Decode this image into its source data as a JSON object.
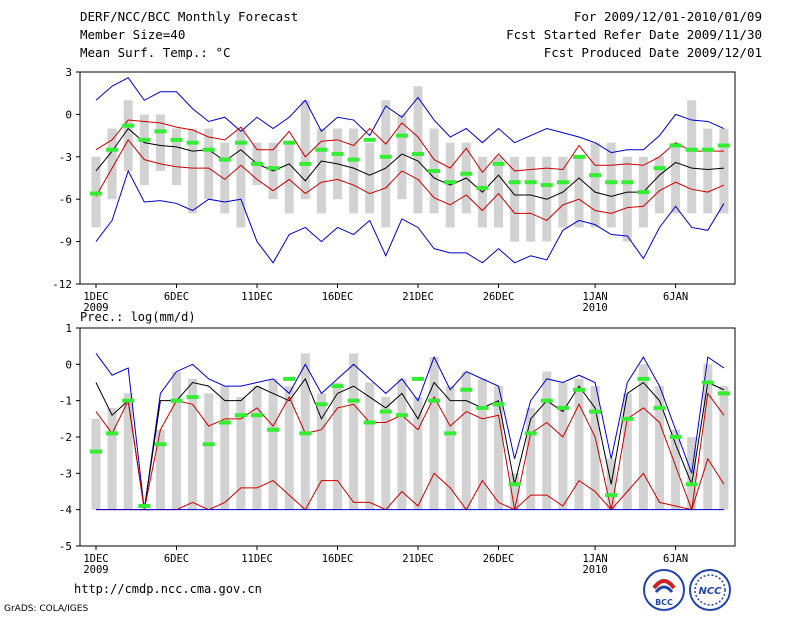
{
  "header": {
    "title": "DERF/NCC/BCC Monthly Forecast",
    "member_size": "Member Size=40",
    "variable": "Mean Surf. Temp.: °C",
    "period": "For 2009/12/01-2010/01/09",
    "start_date": "Fcst Started Refer Date 2009/11/30",
    "produced_date": "Fcst Produced Date 2009/12/01"
  },
  "footer": {
    "url": "http://cmdp.ncc.cma.gov.cn",
    "credit": "GrADS: COLA/IGES",
    "logo_bcc": "BCC",
    "logo_ncc": "NCC"
  },
  "colors": {
    "bar": "#d2d2d2",
    "median": "#33ee33",
    "envelope": "#0000cc",
    "inner": "#cc0000",
    "mean": "#000000"
  },
  "chart_data": [
    {
      "type": "box-series",
      "title": "Mean Surf. Temp.: °C",
      "ylim": [
        -12,
        3
      ],
      "yticks": [
        3,
        0,
        -3,
        -6,
        -9,
        -12
      ],
      "x_ticks": [
        "1DEC",
        "6DEC",
        "11DEC",
        "16DEC",
        "21DEC",
        "26DEC",
        "1JAN",
        "6JAN"
      ],
      "x_tick_days": [
        1,
        6,
        11,
        16,
        21,
        26,
        32,
        37
      ],
      "year_labels": [
        {
          "day": 1,
          "text": "2009"
        },
        {
          "day": 32,
          "text": "2010"
        }
      ],
      "days": 40,
      "bar_low": [
        -8,
        -6,
        -4,
        -5,
        -4,
        -5,
        -7,
        -6,
        -7,
        -8,
        -5,
        -6,
        -7,
        -6,
        -7,
        -6,
        -7,
        -7,
        -8,
        -6,
        -7,
        -7,
        -8,
        -7,
        -8,
        -8,
        -9,
        -9,
        -9,
        -8,
        -8,
        -8,
        -8,
        -9,
        -8,
        -7,
        -7,
        -7,
        -7,
        -7
      ],
      "bar_high": [
        -3,
        -1,
        1,
        0,
        0,
        -1,
        -1,
        -1,
        -2,
        -1,
        -2,
        -2,
        -2,
        1,
        -1,
        -1,
        -1,
        -2,
        1,
        0,
        2,
        -1,
        -2,
        -2,
        -3,
        -3,
        -3,
        -3,
        -3,
        -3,
        -3,
        -2,
        -2,
        -3,
        -3,
        -3,
        -2,
        1,
        -1,
        -1
      ],
      "medians": [
        -5.6,
        -2.5,
        -0.8,
        -1.8,
        -1.2,
        -1.8,
        -2.0,
        -2.5,
        -3.2,
        -2.0,
        -3.5,
        -3.8,
        -2.0,
        -3.5,
        -2.5,
        -2.8,
        -3.2,
        -1.8,
        -3.0,
        -1.5,
        -2.8,
        -4.0,
        -4.8,
        -4.2,
        -5.2,
        -3.5,
        -4.8,
        -4.8,
        -5.0,
        -4.8,
        -3.0,
        -4.3,
        -4.8,
        -4.8,
        -5.5,
        -3.8,
        -2.2,
        -2.5,
        -2.5,
        -2.2
      ],
      "series": [
        {
          "name": "max",
          "color": "#0000cc",
          "values": [
            1.0,
            2.0,
            2.6,
            1.0,
            1.6,
            1.6,
            0.4,
            -0.5,
            -0.2,
            -1.2,
            -0.2,
            -1.0,
            -0.2,
            1.0,
            -1.2,
            -0.2,
            -0.4,
            -1.5,
            0.6,
            -0.2,
            1.2,
            -0.4,
            -1.6,
            -1.0,
            -2.0,
            -1.0,
            -2.0,
            -1.5,
            -1.0,
            -1.3,
            -1.6,
            -2.0,
            -2.7,
            -2.5,
            -2.5,
            -1.5,
            0.0,
            -0.4,
            -0.5,
            -1.0
          ]
        },
        {
          "name": "upper",
          "color": "#cc0000",
          "values": [
            -2.5,
            -1.8,
            -0.4,
            -0.5,
            -0.6,
            -0.9,
            -1.1,
            -1.6,
            -1.8,
            -0.9,
            -2.5,
            -2.5,
            -1.2,
            -3.0,
            -1.9,
            -1.8,
            -2.2,
            -1.0,
            -2.1,
            -0.6,
            -1.6,
            -3.2,
            -3.8,
            -2.4,
            -4.1,
            -2.8,
            -4.0,
            -3.9,
            -3.8,
            -3.9,
            -2.2,
            -3.6,
            -3.6,
            -3.5,
            -3.6,
            -3.0,
            -2.0,
            -2.6,
            -2.6,
            -2.6
          ]
        },
        {
          "name": "mean",
          "color": "#000000",
          "values": [
            -4.0,
            -2.6,
            -1.0,
            -2.0,
            -2.2,
            -2.3,
            -2.6,
            -2.5,
            -3.3,
            -2.5,
            -3.5,
            -4.0,
            -3.5,
            -4.7,
            -3.3,
            -3.5,
            -3.8,
            -4.3,
            -3.8,
            -2.8,
            -3.3,
            -4.5,
            -5.0,
            -4.5,
            -5.5,
            -4.3,
            -5.7,
            -5.7,
            -6.0,
            -5.5,
            -4.5,
            -5.5,
            -5.8,
            -5.5,
            -5.5,
            -4.3,
            -3.4,
            -3.8,
            -3.9,
            -3.8
          ]
        },
        {
          "name": "lower",
          "color": "#cc0000",
          "values": [
            -5.8,
            -3.8,
            -1.8,
            -3.2,
            -3.5,
            -3.7,
            -3.8,
            -3.8,
            -4.6,
            -3.6,
            -4.6,
            -5.4,
            -4.6,
            -5.6,
            -4.8,
            -4.6,
            -5.0,
            -5.6,
            -5.2,
            -4.0,
            -4.6,
            -5.9,
            -6.4,
            -5.7,
            -6.8,
            -5.6,
            -7.0,
            -7.0,
            -7.5,
            -6.4,
            -6.0,
            -6.8,
            -7.0,
            -6.6,
            -6.5,
            -5.4,
            -4.8,
            -5.3,
            -5.5,
            -5.0
          ]
        },
        {
          "name": "min",
          "color": "#0000cc",
          "values": [
            -9.0,
            -7.5,
            -4.0,
            -6.2,
            -6.1,
            -6.3,
            -6.8,
            -6.0,
            -6.2,
            -6.0,
            -9.0,
            -10.5,
            -8.5,
            -8.0,
            -9.0,
            -8.0,
            -8.5,
            -7.5,
            -10.0,
            -7.4,
            -8.0,
            -9.5,
            -9.8,
            -9.8,
            -10.5,
            -9.5,
            -10.5,
            -10.0,
            -10.3,
            -8.2,
            -7.5,
            -7.8,
            -8.5,
            -8.6,
            -10.2,
            -8.0,
            -6.5,
            -8.0,
            -8.2,
            -6.3
          ]
        }
      ]
    },
    {
      "type": "box-series",
      "title": "Prec.: log(mm/d)",
      "ylim": [
        -5,
        1
      ],
      "yticks": [
        1,
        0,
        -1,
        -2,
        -3,
        -4,
        -5
      ],
      "x_ticks": [
        "1DEC",
        "6DEC",
        "11DEC",
        "16DEC",
        "21DEC",
        "26DEC",
        "1JAN",
        "6JAN"
      ],
      "x_tick_days": [
        1,
        6,
        11,
        16,
        21,
        26,
        32,
        37
      ],
      "year_labels": [
        {
          "day": 1,
          "text": "2009"
        },
        {
          "day": 32,
          "text": "2010"
        }
      ],
      "days": 40,
      "bar_low": [
        -4,
        -4,
        -4,
        -4,
        -4,
        -4,
        -4,
        -4,
        -4,
        -4,
        -4,
        -4,
        -4,
        -4,
        -4,
        -4,
        -4,
        -4,
        -4,
        -4,
        -4,
        -4,
        -4,
        -4,
        -4,
        -4,
        -4,
        -4,
        -4,
        -4,
        -4,
        -4,
        -4,
        -4,
        -4,
        -4,
        -4,
        -4,
        -4,
        -4
      ],
      "bar_high": [
        -1.5,
        -1.2,
        -0.8,
        -4.0,
        -1.8,
        -0.2,
        -0.4,
        -0.8,
        -0.6,
        -0.9,
        -0.6,
        -0.4,
        -0.6,
        0.3,
        -0.8,
        -0.5,
        0.3,
        -0.5,
        -0.9,
        -0.4,
        -0.9,
        0.2,
        -0.6,
        -0.2,
        -0.4,
        -0.6,
        -3.0,
        -1.2,
        -0.2,
        -0.5,
        -0.4,
        -0.6,
        -2.6,
        -0.8,
        0.0,
        -0.6,
        -1.8,
        -2.0,
        0.0,
        -0.6
      ],
      "medians": [
        -2.4,
        -1.9,
        -1.0,
        -3.9,
        -2.2,
        -1.0,
        -0.9,
        -2.2,
        -1.6,
        -1.4,
        -1.4,
        -1.8,
        -0.4,
        -1.9,
        -1.1,
        -0.6,
        -1.0,
        -1.6,
        -1.3,
        -1.4,
        -0.4,
        -1.0,
        -1.9,
        -0.7,
        -1.2,
        -1.1,
        -3.3,
        -1.9,
        -1.0,
        -1.2,
        -0.7,
        -1.3,
        -3.6,
        -1.5,
        -0.4,
        -1.2,
        -2.0,
        -3.3,
        -0.5,
        -0.8
      ],
      "series": [
        {
          "name": "max",
          "color": "#0000cc",
          "values": [
            0.3,
            -0.3,
            -0.1,
            -4.0,
            -0.8,
            -0.2,
            0.0,
            -0.4,
            -0.6,
            -0.6,
            -0.5,
            -0.4,
            -0.8,
            0.0,
            -0.8,
            -0.4,
            0.0,
            -0.4,
            -0.8,
            -0.4,
            -1.0,
            0.2,
            -0.7,
            -0.2,
            -0.4,
            -0.6,
            -2.6,
            -1.0,
            -0.4,
            -0.5,
            -0.3,
            -0.5,
            -2.6,
            -0.5,
            0.2,
            -0.6,
            -1.8,
            -3.0,
            0.2,
            -0.1
          ]
        },
        {
          "name": "mean",
          "color": "#000000",
          "values": [
            -0.5,
            -1.4,
            -1.0,
            -4.0,
            -1.0,
            -1.0,
            -0.5,
            -0.6,
            -1.0,
            -1.0,
            -0.6,
            -0.8,
            -1.0,
            -0.4,
            -1.5,
            -0.8,
            -0.6,
            -0.9,
            -1.2,
            -0.8,
            -1.5,
            -0.5,
            -1.0,
            -1.0,
            -1.2,
            -1.0,
            -3.3,
            -1.5,
            -1.0,
            -1.3,
            -0.6,
            -1.2,
            -3.3,
            -0.8,
            -0.5,
            -1.0,
            -2.2,
            -3.3,
            -0.5,
            -0.7
          ]
        },
        {
          "name": "upper",
          "color": "#cc0000",
          "values": [
            -1.3,
            -1.9,
            -1.0,
            -4.0,
            -1.8,
            -1.0,
            -1.1,
            -1.7,
            -1.5,
            -1.5,
            -1.2,
            -1.7,
            -0.9,
            -1.9,
            -1.8,
            -1.2,
            -1.1,
            -1.6,
            -1.6,
            -1.4,
            -1.8,
            -0.9,
            -1.7,
            -1.3,
            -1.5,
            -1.4,
            -4.0,
            -1.9,
            -1.6,
            -2.0,
            -1.1,
            -2.0,
            -4.0,
            -1.5,
            -1.2,
            -1.6,
            -2.8,
            -4.0,
            -0.8,
            -1.4
          ]
        },
        {
          "name": "lower",
          "color": "#cc0000",
          "values": [
            -4.0,
            -4.0,
            -4.0,
            -4.0,
            -4.0,
            -4.0,
            -3.8,
            -4.0,
            -3.8,
            -3.4,
            -3.4,
            -3.2,
            -3.6,
            -4.0,
            -3.2,
            -3.2,
            -3.8,
            -3.8,
            -4.0,
            -3.5,
            -3.9,
            -3.0,
            -3.4,
            -4.0,
            -3.2,
            -3.8,
            -4.0,
            -3.6,
            -3.6,
            -3.9,
            -3.2,
            -3.5,
            -4.0,
            -3.5,
            -3.0,
            -3.8,
            -3.9,
            -4.0,
            -2.6,
            -3.3
          ]
        },
        {
          "name": "min",
          "color": "#0000cc",
          "values": [
            -4,
            -4,
            -4,
            -4,
            -4,
            -4,
            -4,
            -4,
            -4,
            -4,
            -4,
            -4,
            -4,
            -4,
            -4,
            -4,
            -4,
            -4,
            -4,
            -4,
            -4,
            -4,
            -4,
            -4,
            -4,
            -4,
            -4,
            -4,
            -4,
            -4,
            -4,
            -4,
            -4,
            -4,
            -4,
            -4,
            -4,
            -4,
            -4,
            -4
          ]
        }
      ]
    }
  ]
}
